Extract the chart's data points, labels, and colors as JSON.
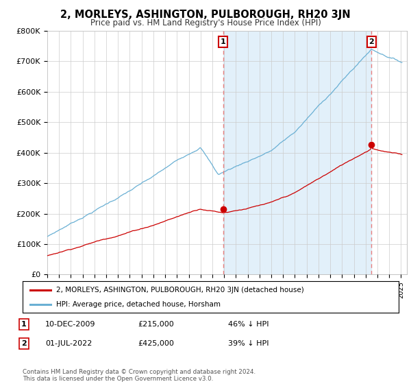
{
  "title": "2, MORLEYS, ASHINGTON, PULBOROUGH, RH20 3JN",
  "subtitle": "Price paid vs. HM Land Registry's House Price Index (HPI)",
  "ylim": [
    0,
    800000
  ],
  "yticks": [
    0,
    100000,
    200000,
    300000,
    400000,
    500000,
    600000,
    700000,
    800000
  ],
  "ytick_labels": [
    "£0",
    "£100K",
    "£200K",
    "£300K",
    "£400K",
    "£500K",
    "£600K",
    "£700K",
    "£800K"
  ],
  "hpi_color": "#6ab0d4",
  "hpi_fill_color": "#d6eaf8",
  "price_color": "#cc0000",
  "marker1_date": 2009.92,
  "marker1_price": 215000,
  "marker1_label": "1",
  "marker2_date": 2022.5,
  "marker2_price": 425000,
  "marker2_label": "2",
  "vline_color": "#e88080",
  "legend_label1": "2, MORLEYS, ASHINGTON, PULBOROUGH, RH20 3JN (detached house)",
  "legend_label2": "HPI: Average price, detached house, Horsham",
  "table_rows": [
    {
      "num": "1",
      "date": "10-DEC-2009",
      "price": "£215,000",
      "rel": "46% ↓ HPI"
    },
    {
      "num": "2",
      "date": "01-JUL-2022",
      "price": "£425,000",
      "rel": "39% ↓ HPI"
    }
  ],
  "footer": "Contains HM Land Registry data © Crown copyright and database right 2024.\nThis data is licensed under the Open Government Licence v3.0.",
  "background_color": "#ffffff",
  "grid_color": "#cccccc",
  "xlim_start": 1995,
  "xlim_end": 2025.5
}
